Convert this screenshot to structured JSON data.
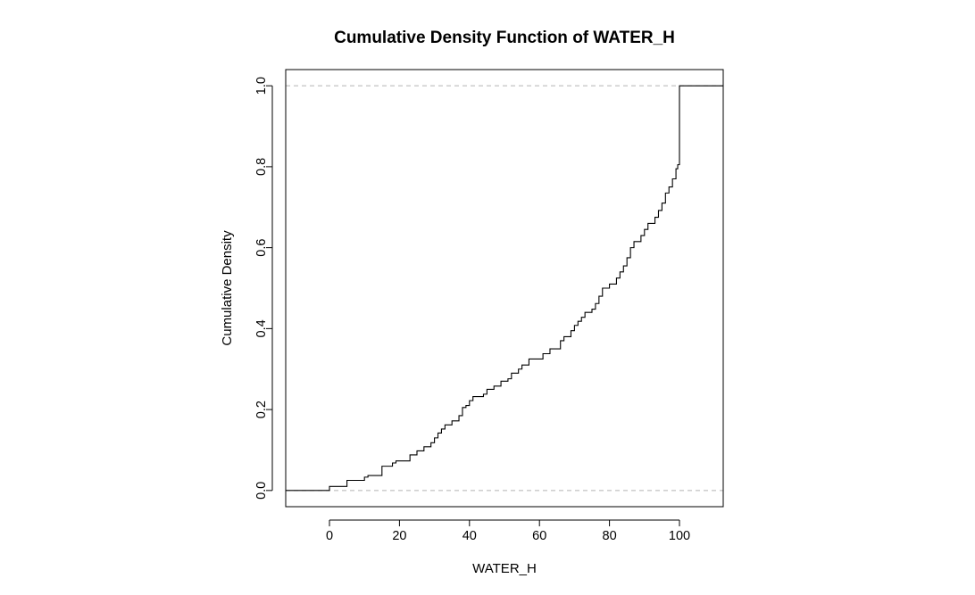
{
  "chart_data": {
    "type": "line",
    "title": "Cumulative Density Function of WATER_H",
    "xlabel": "WATER_H",
    "ylabel": "Cumulative Density",
    "xlim": [
      -12.5,
      112.5
    ],
    "ylim": [
      -0.04,
      1.04
    ],
    "x_ticks": [
      0,
      20,
      40,
      60,
      80,
      100
    ],
    "x_tick_labels": [
      "0",
      "20",
      "40",
      "60",
      "80",
      "100"
    ],
    "y_ticks": [
      0.0,
      0.2,
      0.4,
      0.6,
      0.8,
      1.0
    ],
    "y_tick_labels": [
      "0.0",
      "0.2",
      "0.4",
      "0.6",
      "0.8",
      "1.0"
    ],
    "reference_lines_y": [
      0,
      1
    ],
    "grid": false,
    "series": [
      {
        "step": true,
        "points": [
          [
            -12.5,
            0.0
          ],
          [
            0,
            0.01
          ],
          [
            5,
            0.025
          ],
          [
            10,
            0.033
          ],
          [
            11,
            0.037
          ],
          [
            15,
            0.06
          ],
          [
            18,
            0.068
          ],
          [
            19,
            0.073
          ],
          [
            23,
            0.088
          ],
          [
            25,
            0.098
          ],
          [
            27,
            0.108
          ],
          [
            29,
            0.118
          ],
          [
            30,
            0.13
          ],
          [
            31,
            0.142
          ],
          [
            32,
            0.152
          ],
          [
            33,
            0.162
          ],
          [
            35,
            0.172
          ],
          [
            37,
            0.185
          ],
          [
            38,
            0.205
          ],
          [
            39,
            0.21
          ],
          [
            40,
            0.222
          ],
          [
            41,
            0.232
          ],
          [
            44,
            0.238
          ],
          [
            45,
            0.25
          ],
          [
            47,
            0.258
          ],
          [
            49,
            0.27
          ],
          [
            51,
            0.276
          ],
          [
            52,
            0.29
          ],
          [
            54,
            0.3
          ],
          [
            55,
            0.31
          ],
          [
            57,
            0.325
          ],
          [
            61,
            0.338
          ],
          [
            63,
            0.35
          ],
          [
            66,
            0.37
          ],
          [
            67,
            0.38
          ],
          [
            69,
            0.395
          ],
          [
            70,
            0.408
          ],
          [
            71,
            0.418
          ],
          [
            72,
            0.428
          ],
          [
            73,
            0.44
          ],
          [
            75,
            0.448
          ],
          [
            76,
            0.462
          ],
          [
            77,
            0.48
          ],
          [
            78,
            0.5
          ],
          [
            80,
            0.51
          ],
          [
            82,
            0.525
          ],
          [
            83,
            0.54
          ],
          [
            84,
            0.555
          ],
          [
            85,
            0.575
          ],
          [
            86,
            0.6
          ],
          [
            87,
            0.615
          ],
          [
            89,
            0.63
          ],
          [
            90,
            0.645
          ],
          [
            91,
            0.66
          ],
          [
            93,
            0.675
          ],
          [
            94,
            0.692
          ],
          [
            95,
            0.71
          ],
          [
            96,
            0.735
          ],
          [
            97,
            0.75
          ],
          [
            98,
            0.77
          ],
          [
            99,
            0.795
          ],
          [
            99.5,
            0.805
          ],
          [
            100,
            1.0
          ],
          [
            112.5,
            1.0
          ]
        ]
      }
    ]
  }
}
